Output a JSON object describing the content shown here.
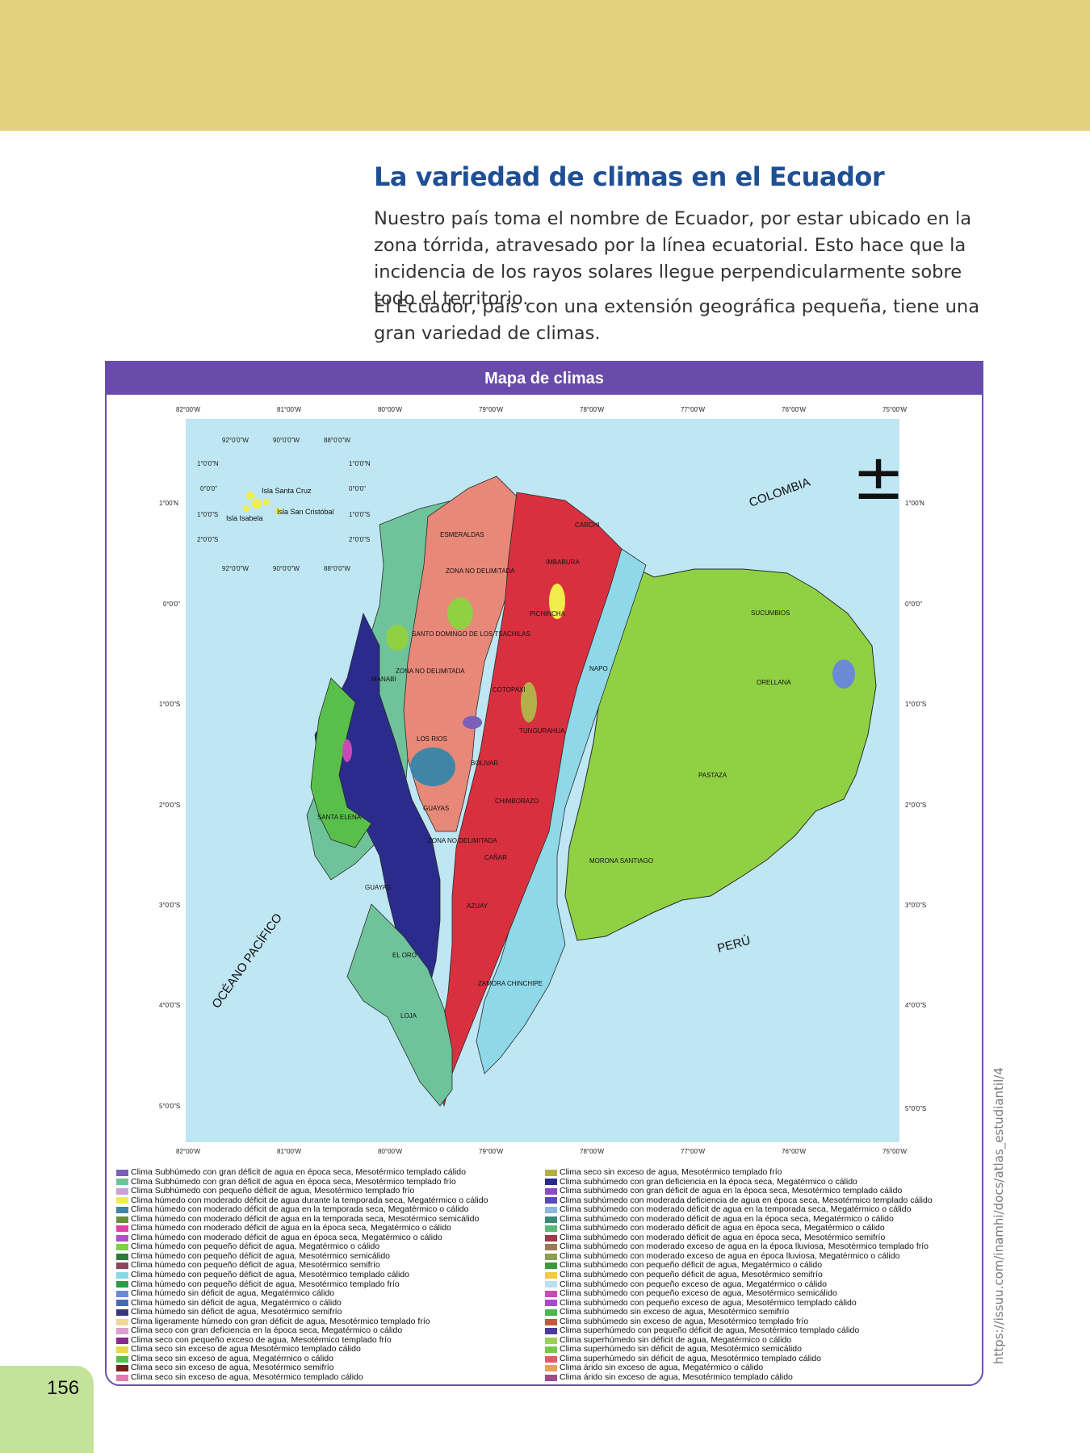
{
  "page": {
    "number": "156",
    "title": "La variedad de climas en el Ecuador",
    "paragraphs": [
      "Nuestro país toma el nombre de Ecuador, por estar ubicado en la zona tórrida, atravesado por la línea ecuatorial. Esto hace que la incidencia de los rayos solares llegue perpendicularmente sobre todo el territorio.",
      "El Ecuador, país con una extensión geográfica pequeña, tiene una gran variedad de climas."
    ],
    "source_url": "https://issuu.com/inamhi/docs/atlas_estudiantil/4"
  },
  "map": {
    "header": "Mapa de climas",
    "colors": {
      "header_bg": "#694ca9",
      "sea": "#bfe6f3",
      "top_band": "#e3d17e",
      "title": "#1f4f94"
    },
    "longitude_labels": [
      "82°00'W",
      "81°00'W",
      "80°00'W",
      "79°00'W",
      "78°00'W",
      "77°00'W",
      "76°00'W",
      "75°00'W"
    ],
    "latitude_labels": [
      "1°00'N",
      "0°0'0\"",
      "1°0'0\"S",
      "2°0'0\"S",
      "3°0'0\"S",
      "4°0'0\"S",
      "5°0'0\"S"
    ],
    "latitude_labels_right": [
      "1°00'N",
      "0°0'0\"",
      "1°0'0\"S",
      "2°0'0\"S",
      "3°0'0\"S",
      "4°0'0\"S",
      "5°0'0\"S"
    ],
    "inset": {
      "lon_labels": [
        "92°0'0\"W",
        "90°0'0\"W",
        "88°0'0\"W"
      ],
      "lat_labels_left": [
        "1°0'0\"N",
        "0°0'0\"",
        "1°0'0\"S",
        "2°0'0\"S"
      ],
      "lat_labels_right": [
        "1°0'0\"N",
        "0°0'0\"",
        "1°0'0\"S",
        "2°0'0\"S"
      ],
      "island_labels": [
        "Isla Santa Cruz",
        "Isla Isabela",
        "Isla San Cristóbal"
      ]
    },
    "north_symbol": "±",
    "country_labels": {
      "colombia": "COLOMBIA",
      "peru": "PERÚ",
      "ocean": "OCÉANO PACÍFICO"
    },
    "province_labels": [
      "ESMERALDAS",
      "CARCHI",
      "IMBABURA",
      "ZONA NO DELIMITADA",
      "PICHINCHA",
      "SUCUMBIOS",
      "SANTO DOMINGO DE LOS TSACHILAS",
      "MANABI",
      "ZONA NO DELIMITADA",
      "NAPO",
      "COTOPAXI",
      "ORELLANA",
      "TUNGURAHUA",
      "LOS RIOS",
      "BOLIVAR",
      "PASTAZA",
      "CHIMBORAZO",
      "SANTA ELENA",
      "GUAYAS",
      "ZONA NO DELIMITADA",
      "CAÑAR",
      "MORONA SANTIAGO",
      "GUAYAS",
      "AZUAY",
      "EL ORO",
      "ZAMORA CHINCHIPE",
      "LOJA"
    ]
  },
  "legend": {
    "left": [
      {
        "label": "Clima Subhúmedo con gran déficit de agua en época seca, Mesotérmico templado cálido",
        "color": "#7b5fb8"
      },
      {
        "label": "Clima Subhúmedo con gran déficit de agua en época seca, Mesotérmico templado frío",
        "color": "#6fc39a"
      },
      {
        "label": "Clima Subhúmedo con pequeño déficit de agua, Mesotérmico templado frío",
        "color": "#c9a2d6"
      },
      {
        "label": "Clima húmedo con moderado déficit de agua durante la temporada seca, Megatérmico o cálido",
        "color": "#f2ec4a"
      },
      {
        "label": "Clima húmedo con moderado déficit de agua en la temporada seca, Megatérmico o cálido",
        "color": "#3f86a6"
      },
      {
        "label": "Clima húmedo con moderado déficit de agua en la temporada seca, Mesotérmico semicálido",
        "color": "#6a8e3c"
      },
      {
        "label": "Clima húmedo con moderado déficit de agua en la época seca, Megatérmico o cálido",
        "color": "#e040a8"
      },
      {
        "label": "Clima húmedo con moderado déficit de agua en época seca, Megatérmico o cálido",
        "color": "#b04fc8"
      },
      {
        "label": "Clima húmedo con pequeño déficit de agua, Megatérmico o cálido",
        "color": "#7fd04a"
      },
      {
        "label": "Clima húmedo con pequeño déficit de agua, Mesotérmico semicálido",
        "color": "#2e7a3c"
      },
      {
        "label": "Clima húmedo con pequeño déficit de agua, Mesotérmico semifrío",
        "color": "#8a4a5e"
      },
      {
        "label": "Clima húmedo con pequeño déficit de agua, Mesotérmico templado cálido",
        "color": "#88d7e6"
      },
      {
        "label": "Clima húmedo con pequeño déficit de agua, Mesotérmico templado frío",
        "color": "#2f9a4a"
      },
      {
        "label": "Clima húmedo sin déficit de agua, Megatérmico cálido",
        "color": "#6a8ad6"
      },
      {
        "label": "Clima húmedo sin déficit de agua, Megatérmico o cálido",
        "color": "#4a6ab0"
      },
      {
        "label": "Clima húmedo sin déficit de agua, Mesotérmico semifrío",
        "color": "#3a3a7a"
      },
      {
        "label": "Clima ligeramente húmedo con gran déficit de agua, Mesotérmico templado frío",
        "color": "#f2d69a"
      },
      {
        "label": "Clima seco con gran deficiencia en la época seca, Megatérmico o cálido",
        "color": "#d9a0d0"
      },
      {
        "label": "Clima seco con pequeño exceso de agua,  Mesotérmico templado frío",
        "color": "#8a2a8a"
      },
      {
        "label": "Clima seco sin exceso de agua Mesotérmico templado cálido",
        "color": "#e6d84a"
      },
      {
        "label": "Clima seco sin exceso de agua, Megatérmico o cálido",
        "color": "#58c04a"
      },
      {
        "label": "Clima seco sin exceso de agua, Mesotérmico semifrío",
        "color": "#7a1e1e"
      },
      {
        "label": "Clima seco sin exceso de agua, Mesotérmico templado cálido",
        "color": "#e07ab0"
      }
    ],
    "right": [
      {
        "label": "Clima seco sin exceso de agua, Mesotérmico templado frío",
        "color": "#b3b04a"
      },
      {
        "label": "Clima subhúmedo con gran deficiencia en la época seca, Megatérmico o cálido",
        "color": "#2a2a8a"
      },
      {
        "label": "Clima subhúmedo con gran déficit de agua en la época seca, Mesotérmico templado cálido",
        "color": "#8a4ac8"
      },
      {
        "label": "Clima subhúmedo con moderada deficiencia de agua en época seca, Mesotérmico templado cálido",
        "color": "#5a4ab8"
      },
      {
        "label": "Clima subhúmedo con moderado déficit de agua en la temporada seca, Megatérmico o cálido",
        "color": "#8ab8e0"
      },
      {
        "label": "Clima subhúmedo con moderado déficit de agua en la época seca, Megatérmico  o cálido",
        "color": "#3a8a7a"
      },
      {
        "label": "Clima subhúmedo con moderado déficit de agua en época seca, Megatérmico o cálido",
        "color": "#5ab87a"
      },
      {
        "label": "Clima subhúmedo con moderado déficit de agua en época seca, Mesotérmico semifrío",
        "color": "#a03a4a"
      },
      {
        "label": "Clima subhúmedo con moderado exceso de agua en la época lluviosa, Mesotérmico templado frío",
        "color": "#9a7a5a"
      },
      {
        "label": "Clima subhúmedo con moderado exceso de agua en época lluviosa, Megatérmico o cálido",
        "color": "#8aa04a"
      },
      {
        "label": "Clima subhúmedo con pequeño déficit de agua, Megatérmico o cálido",
        "color": "#3a9a3a"
      },
      {
        "label": "Clima subhúmedo con pequeño déficit de agua, Mesotérmico semifrío",
        "color": "#f2c84a"
      },
      {
        "label": "Clima subhúmedo con pequeño exceso de agua, Megatérmico o cálido",
        "color": "#b8e0f0"
      },
      {
        "label": "Clima subhúmedo con pequeño exceso de agua, Mesotérmico semicálido",
        "color": "#c84ab8"
      },
      {
        "label": "Clima subhúmedo con pequeño exceso de agua, Mesotérmico templado cálido",
        "color": "#a84ad0"
      },
      {
        "label": "Clima subhúmedo sin exceso de agua, Mesotérmico semifrío",
        "color": "#4ab84a"
      },
      {
        "label": "Clima subhúmedo sin exceso de agua, Mesotérmico templado frío",
        "color": "#c05a3a"
      },
      {
        "label": "Clima superhúmedo con pequeño déficit de agua, Mesotérmico templado cálido",
        "color": "#4a3a9a"
      },
      {
        "label": "Clima superhúmedo sin déficit de agua, Megatérmico o cálido",
        "color": "#9ad05a"
      },
      {
        "label": "Clima superhúmedo sin déficit de agua, Mesotérmico semicálido",
        "color": "#7ac84a"
      },
      {
        "label": "Clima superhúmedo sin déficit de agua, Mesotérmico templado cálido",
        "color": "#e85a6a"
      },
      {
        "label": "Clima árido sin exceso de agua, Megatérmico o cálido",
        "color": "#e8a05a"
      },
      {
        "label": "Clima árido sin exceso de agua, Mesotérmico templado cálido",
        "color": "#a04a8a"
      }
    ]
  }
}
